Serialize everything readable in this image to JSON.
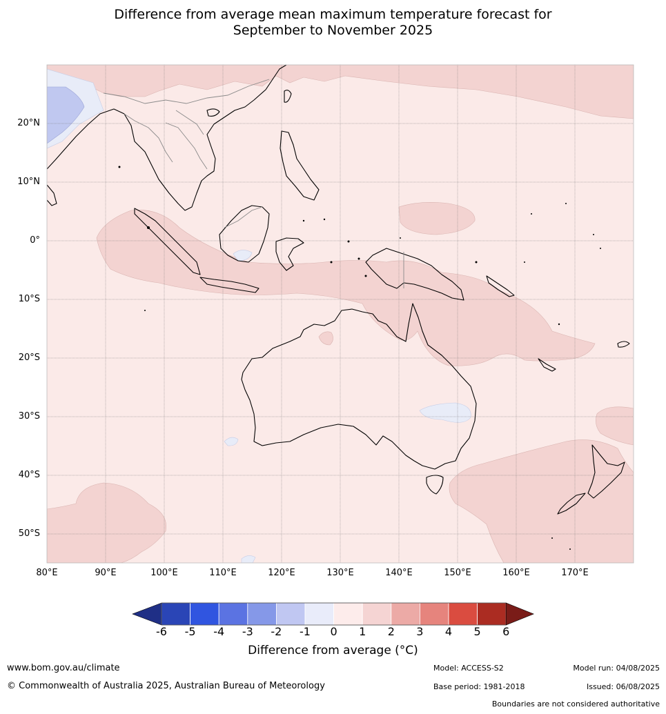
{
  "title": {
    "line1": "Difference from average mean maximum temperature forecast for",
    "line2": "September to November 2025"
  },
  "map": {
    "lat_labels": [
      "20°N",
      "10°N",
      "0°",
      "10°S",
      "20°S",
      "30°S",
      "40°S",
      "50°S"
    ],
    "lon_labels": [
      "80°E",
      "90°E",
      "100°E",
      "110°E",
      "120°E",
      "130°E",
      "140°E",
      "150°E",
      "160°E",
      "170°E"
    ],
    "background_category": "0 to 1",
    "colors": {
      "cat_0_1": "#fbeae8",
      "cat_1_2": "#f3d3d1",
      "cat_m1_0": "#e8ecf8",
      "cat_m2_m1": "#c0c8f0",
      "coast": "#000000",
      "border": "#8a8a8a",
      "grid": "#777777"
    }
  },
  "colorbar": {
    "ticks": [
      "-6",
      "-5",
      "-4",
      "-3",
      "-2",
      "-1",
      "0",
      "1",
      "2",
      "3",
      "4",
      "5",
      "6"
    ],
    "colors": [
      "#1f2f86",
      "#2a45b6",
      "#3055e0",
      "#5b73e2",
      "#8598e8",
      "#c0c7f2",
      "#e9ecfa",
      "#fdeceb",
      "#f5d4d3",
      "#ecaaa6",
      "#e6847d",
      "#da4c40",
      "#ab2c22",
      "#7a1c18"
    ],
    "label": "Difference from average (°C)"
  },
  "footer": {
    "website": "www.bom.gov.au/climate",
    "copyright": "© Commonwealth of Australia 2025, Australian Bureau of Meteorology",
    "model": "Model: ACCESS-S2",
    "base_period": "Base period: 1981-2018",
    "model_run": "Model run: 04/08/2025",
    "issued": "Issued: 06/08/2025",
    "disclaimer": "Boundaries are not considered authoritative"
  }
}
